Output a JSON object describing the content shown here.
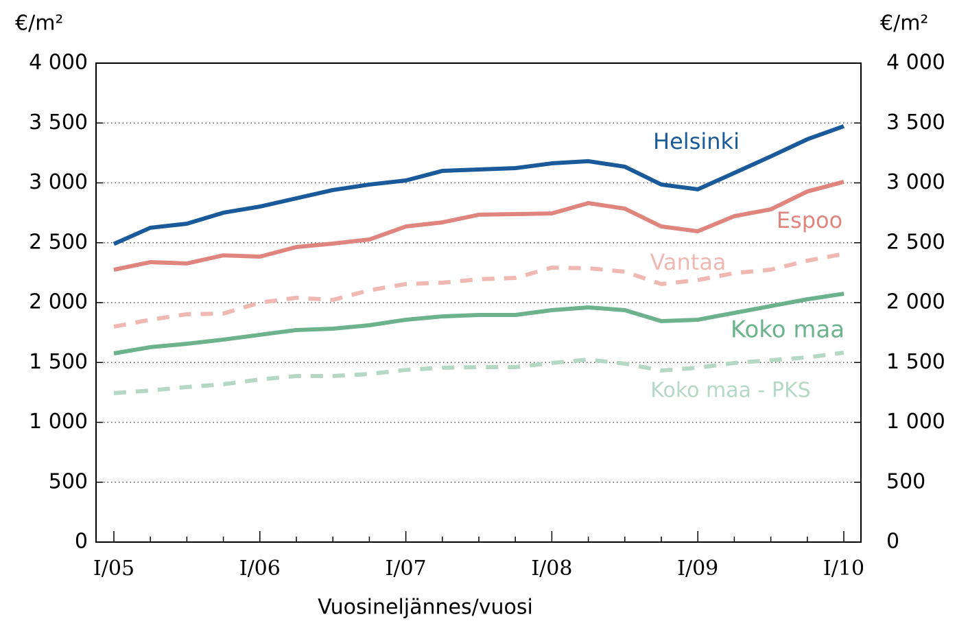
{
  "chart_data": {
    "type": "line",
    "y_label": "€/m²",
    "y2_label": "€/m²",
    "x_label": "Vuosineljännes/vuosi",
    "categories": [
      "I/05",
      null,
      null,
      null,
      "I/06",
      null,
      null,
      null,
      "I/07",
      null,
      null,
      null,
      "I/08",
      null,
      null,
      null,
      "I/09",
      null,
      null,
      null,
      "I/10"
    ],
    "series": [
      {
        "name": "Helsinki",
        "color": "#1a5a9a",
        "dashed": false,
        "values": [
          2490,
          2625,
          2659,
          2751,
          2802,
          2871,
          2940,
          2986,
          3020,
          3100,
          3112,
          3123,
          3163,
          3181,
          3135,
          2986,
          2946,
          3083,
          3221,
          3364,
          3473
        ]
      },
      {
        "name": "Espoo",
        "color": "#e0857e",
        "dashed": false,
        "values": [
          2275,
          2338,
          2327,
          2395,
          2384,
          2464,
          2493,
          2527,
          2636,
          2670,
          2734,
          2739,
          2745,
          2831,
          2785,
          2636,
          2596,
          2722,
          2779,
          2928,
          3009
        ]
      },
      {
        "name": "Vantaa",
        "color": "#f0b8b2",
        "dashed": true,
        "values": [
          1799,
          1857,
          1903,
          1908,
          2000,
          2040,
          2023,
          2103,
          2155,
          2166,
          2195,
          2206,
          2292,
          2287,
          2258,
          2155,
          2189,
          2246,
          2275,
          2350,
          2407
        ]
      },
      {
        "name": "Koko maa",
        "color": "#6bb28d",
        "dashed": false,
        "values": [
          1576,
          1628,
          1656,
          1691,
          1731,
          1771,
          1782,
          1811,
          1857,
          1885,
          1897,
          1897,
          1937,
          1960,
          1937,
          1845,
          1857,
          1914,
          1971,
          2028,
          2074
        ]
      },
      {
        "name": "Koko maa - PKS",
        "color": "#b5d8c4",
        "dashed": true,
        "values": [
          1244,
          1266,
          1295,
          1318,
          1358,
          1387,
          1387,
          1404,
          1438,
          1456,
          1461,
          1461,
          1496,
          1524,
          1490,
          1433,
          1456,
          1496,
          1519,
          1542,
          1582
        ]
      }
    ],
    "ylim": [
      0,
      4000
    ],
    "yticks": [
      0,
      500,
      {
        "value": 1000,
        "label": "1 000"
      },
      {
        "value": 1500,
        "label": "1 500"
      },
      {
        "value": 2000,
        "label": "2 000"
      },
      {
        "value": 2500,
        "label": "2 500"
      },
      {
        "value": 3000,
        "label": "3 000"
      },
      {
        "value": 3500,
        "label": "3 500"
      },
      {
        "value": 4000,
        "label": "4 000"
      }
    ],
    "y2lim": [
      0,
      4000
    ],
    "y2ticks": [
      0,
      500,
      {
        "value": 1000,
        "label": "1 000"
      },
      {
        "value": 1500,
        "label": "1 500"
      },
      {
        "value": 2000,
        "label": "2 000"
      },
      {
        "value": 2500,
        "label": "2 500"
      },
      {
        "value": 3000,
        "label": "3 000"
      },
      {
        "value": 3500,
        "label": "3 500"
      },
      {
        "value": 4000,
        "label": "4 000"
      }
    ],
    "grid": true
  }
}
